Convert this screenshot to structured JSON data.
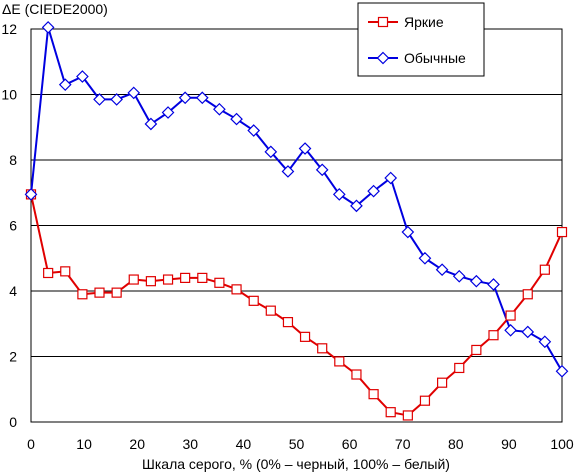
{
  "chart_data": {
    "type": "line",
    "ylabel": "ΔE (CIEDE2000)",
    "xlabel": "Шкала серого, % (0% – черный, 100% – белый)",
    "xlim": [
      0,
      100
    ],
    "ylim": [
      0,
      12
    ],
    "xticks": [
      "0",
      "10",
      "20",
      "30",
      "40",
      "50",
      "60",
      "70",
      "80",
      "90",
      "100"
    ],
    "yticks": [
      "0",
      "2",
      "4",
      "6",
      "8",
      "10",
      "12"
    ],
    "grid": "horizontal",
    "legend_position": "top-right",
    "x": [
      0,
      3.23,
      6.45,
      9.68,
      12.9,
      16.13,
      19.35,
      22.58,
      25.81,
      29.03,
      32.26,
      35.48,
      38.71,
      41.94,
      45.16,
      48.39,
      51.61,
      54.84,
      58.06,
      61.29,
      64.52,
      67.74,
      70.97,
      74.19,
      77.42,
      80.65,
      83.87,
      87.1,
      90.32,
      93.55,
      96.77,
      100
    ],
    "series": [
      {
        "name": "Яркие",
        "color": "#e00000",
        "marker": "square",
        "values": [
          6.95,
          4.55,
          4.6,
          3.9,
          3.95,
          3.95,
          4.35,
          4.3,
          4.35,
          4.4,
          4.4,
          4.25,
          4.05,
          3.7,
          3.4,
          3.05,
          2.6,
          2.25,
          1.85,
          1.45,
          0.85,
          0.3,
          0.2,
          0.65,
          1.2,
          1.65,
          2.2,
          2.65,
          3.25,
          3.9,
          4.65,
          5.8
        ]
      },
      {
        "name": "Обычные",
        "color": "#0000e0",
        "marker": "diamond",
        "values": [
          6.95,
          12.05,
          10.3,
          10.55,
          9.85,
          9.85,
          10.05,
          9.1,
          9.45,
          9.9,
          9.9,
          9.55,
          9.25,
          8.9,
          8.25,
          7.65,
          8.35,
          7.7,
          6.95,
          6.6,
          7.05,
          7.45,
          5.8,
          5.0,
          4.65,
          4.45,
          4.3,
          4.2,
          2.8,
          2.75,
          2.45,
          1.55
        ]
      }
    ]
  }
}
